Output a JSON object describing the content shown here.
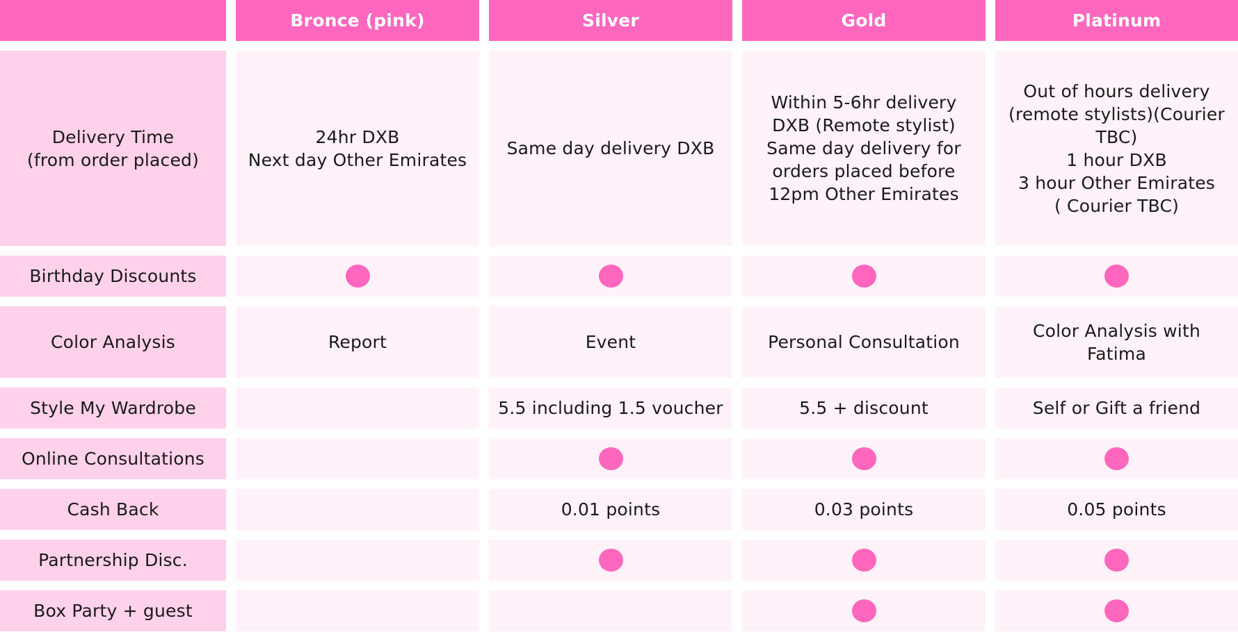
{
  "colors": {
    "header_bg": "#ff66be",
    "header_text": "#ffffff",
    "label_cell_bg": "#ffd1ea",
    "cell_bg": "#fff2f8",
    "dot": "#ff66be"
  },
  "table": {
    "columns": [
      "",
      "Bronce (pink)",
      "Silver",
      "Gold",
      "Platinum"
    ],
    "rows": [
      {
        "label": "Delivery Time\n(from order placed)",
        "cells": [
          {
            "text": "24hr DXB\nNext day Other Emirates"
          },
          {
            "text": "Same day delivery DXB"
          },
          {
            "text": "Within 5-6hr delivery\nDXB (Remote stylist)\nSame day delivery for\norders placed before\n12pm Other Emirates"
          },
          {
            "text": "Out of hours delivery\n(remote stylists)(Courier\nTBC)\n1 hour DXB\n3 hour Other Emirates\n( Courier TBC)"
          }
        ]
      },
      {
        "label": "Birthday Discounts",
        "cells": [
          {
            "included": true
          },
          {
            "included": true
          },
          {
            "included": true
          },
          {
            "included": true
          }
        ]
      },
      {
        "label": "Color Analysis",
        "cells": [
          {
            "text": "Report"
          },
          {
            "text": "Event"
          },
          {
            "text": "Personal Consultation"
          },
          {
            "text": "Color Analysis with\nFatima"
          }
        ]
      },
      {
        "label": "Style My Wardrobe",
        "cells": [
          {
            "text": ""
          },
          {
            "text": "5.5 including 1.5 voucher"
          },
          {
            "text": "5.5 + discount"
          },
          {
            "text": "Self or Gift a friend"
          }
        ]
      },
      {
        "label": "Online Consultations",
        "cells": [
          {
            "included": false
          },
          {
            "included": true
          },
          {
            "included": true
          },
          {
            "included": true
          }
        ]
      },
      {
        "label": "Cash Back",
        "cells": [
          {
            "text": ""
          },
          {
            "text": "0.01 points"
          },
          {
            "text": "0.03 points"
          },
          {
            "text": "0.05 points"
          }
        ]
      },
      {
        "label": "Partnership Disc.",
        "cells": [
          {
            "included": false
          },
          {
            "included": true
          },
          {
            "included": true
          },
          {
            "included": true
          }
        ]
      },
      {
        "label": "Box Party + guest",
        "cells": [
          {
            "included": false
          },
          {
            "included": false
          },
          {
            "included": true
          },
          {
            "included": true
          }
        ]
      }
    ]
  }
}
